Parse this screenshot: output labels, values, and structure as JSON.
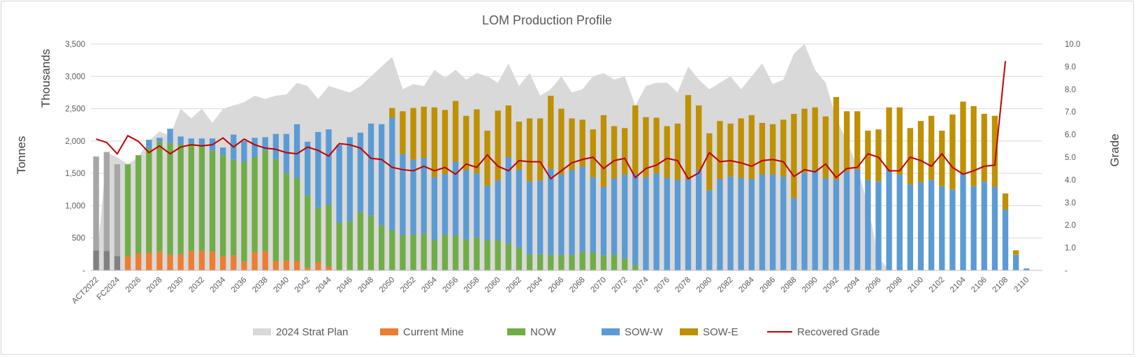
{
  "chart_data": {
    "type": "bar",
    "title": "LOM Production Profile",
    "y_title_outer": "Tonnes",
    "y_title_inner": "Thousands",
    "y2_title": "Grade",
    "ylim": [
      0,
      3500
    ],
    "y_ticks": [
      0,
      500,
      1000,
      1500,
      2000,
      2500,
      3000,
      3500
    ],
    "y_tick_labels": [
      "-",
      "500",
      "1,000",
      "1,500",
      "2,000",
      "2,500",
      "3,000",
      "3,500"
    ],
    "y2lim": [
      0,
      10
    ],
    "y2_ticks": [
      0,
      1,
      2,
      3,
      4,
      5,
      6,
      7,
      8,
      9,
      10
    ],
    "y2_tick_labels": [
      "-",
      "1.0",
      "2.0",
      "3.0",
      "4.0",
      "5.0",
      "6.0",
      "7.0",
      "8.0",
      "9.0",
      "10.0"
    ],
    "categories": [
      "ACT2022",
      "ACT2023",
      "FC2024",
      "2025",
      "2026",
      "2027",
      "2028",
      "2029",
      "2030",
      "2031",
      "2032",
      "2033",
      "2034",
      "2035",
      "2036",
      "2037",
      "2038",
      "2039",
      "2040",
      "2041",
      "2042",
      "2043",
      "2044",
      "2045",
      "2046",
      "2047",
      "2048",
      "2049",
      "2050",
      "2051",
      "2052",
      "2053",
      "2054",
      "2055",
      "2056",
      "2057",
      "2058",
      "2059",
      "2060",
      "2061",
      "2062",
      "2063",
      "2064",
      "2065",
      "2066",
      "2067",
      "2068",
      "2069",
      "2070",
      "2071",
      "2072",
      "2073",
      "2074",
      "2075",
      "2076",
      "2077",
      "2078",
      "2079",
      "2080",
      "2081",
      "2082",
      "2083",
      "2084",
      "2085",
      "2086",
      "2087",
      "2088",
      "2089",
      "2090",
      "2091",
      "2092",
      "2093",
      "2094",
      "2095",
      "2096",
      "2097",
      "2098",
      "2099",
      "2100",
      "2101",
      "2102",
      "2103",
      "2104",
      "2105",
      "2106",
      "2107",
      "2108",
      "2109",
      "2110",
      "2111"
    ],
    "x_tick_labels": [
      "ACT2022",
      "FC2024",
      "2026",
      "2028",
      "2030",
      "2032",
      "2034",
      "2036",
      "2038",
      "2040",
      "2042",
      "2044",
      "2046",
      "2048",
      "2050",
      "2052",
      "2054",
      "2056",
      "2058",
      "2060",
      "2062",
      "2064",
      "2066",
      "2068",
      "2070",
      "2072",
      "2074",
      "2076",
      "2078",
      "2080",
      "2082",
      "2084",
      "2086",
      "2088",
      "2090",
      "2092",
      "2094",
      "2096",
      "2098",
      "2100",
      "2102",
      "2104",
      "2106",
      "2108",
      "2110"
    ],
    "actual_series": {
      "total": [
        1760,
        1830,
        1640
      ],
      "dark": [
        310,
        300,
        220
      ]
    },
    "area_series": {
      "name": "2024 Strat Plan",
      "color": "#d9d9d9",
      "values": [
        0,
        1820,
        1750,
        1640,
        1750,
        2000,
        2150,
        2080,
        2500,
        2350,
        2500,
        2280,
        2500,
        2550,
        2600,
        2700,
        2650,
        2700,
        2720,
        2900,
        2850,
        2650,
        2850,
        2800,
        2750,
        2850,
        3000,
        3150,
        3300,
        2800,
        2880,
        2850,
        3100,
        2980,
        3100,
        2950,
        3050,
        3000,
        2900,
        3200,
        2850,
        3050,
        2700,
        2800,
        3000,
        2750,
        2800,
        3000,
        3050,
        2950,
        3000,
        2550,
        2850,
        2900,
        2900,
        2750,
        3150,
        2950,
        2800,
        2900,
        3000,
        2800,
        3000,
        3200,
        2880,
        2950,
        3350,
        3500,
        3100,
        2900,
        2350,
        2000,
        1600,
        1000,
        200,
        0,
        0,
        0,
        0,
        0,
        0,
        0,
        0,
        0,
        0,
        0,
        0,
        0,
        0,
        0
      ]
    },
    "series": [
      {
        "name": "Current Mine",
        "color": "#ed7d31",
        "values": [
          0,
          0,
          0,
          220,
          260,
          270,
          290,
          240,
          250,
          300,
          300,
          290,
          220,
          230,
          140,
          280,
          300,
          140,
          150,
          140,
          40,
          130,
          60,
          0,
          0,
          0,
          0,
          0,
          0,
          0,
          0,
          0,
          0,
          0,
          0,
          0,
          0,
          0,
          0,
          0,
          0,
          0,
          0,
          0,
          0,
          0,
          0,
          0,
          0,
          0,
          0,
          0,
          0,
          0,
          0,
          0,
          0,
          0,
          0,
          0,
          0,
          0,
          0,
          0,
          0,
          0,
          0,
          0,
          0,
          0,
          0,
          0,
          0,
          0,
          0,
          0,
          0,
          0,
          0,
          0,
          0,
          0,
          0,
          0,
          0,
          0,
          0,
          0,
          0,
          0
        ]
      },
      {
        "name": "NOW",
        "color": "#70ad47",
        "values": [
          0,
          0,
          0,
          1420,
          1520,
          1620,
          1700,
          1730,
          1700,
          1660,
          1630,
          1560,
          1560,
          1480,
          1540,
          1470,
          1550,
          1580,
          1350,
          1290,
          1120,
          840,
          950,
          740,
          760,
          900,
          850,
          700,
          620,
          540,
          550,
          570,
          470,
          550,
          540,
          480,
          510,
          470,
          470,
          420,
          350,
          250,
          250,
          240,
          240,
          240,
          290,
          280,
          230,
          240,
          180,
          80,
          0,
          0,
          0,
          0,
          0,
          0,
          0,
          0,
          0,
          0,
          0,
          0,
          0,
          0,
          0,
          0,
          0,
          0,
          0,
          0,
          0,
          0,
          0,
          0,
          0,
          0,
          0,
          0,
          0,
          0,
          0,
          0,
          0,
          0,
          0,
          0,
          0,
          0
        ]
      },
      {
        "name": "SOW-W",
        "color": "#5b9bd5",
        "values": [
          0,
          0,
          0,
          0,
          0,
          130,
          60,
          220,
          120,
          80,
          110,
          190,
          120,
          390,
          320,
          300,
          210,
          390,
          610,
          830,
          830,
          1170,
          1170,
          1200,
          1300,
          1230,
          1420,
          1560,
          1740,
          1260,
          1160,
          1170,
          970,
          940,
          1140,
          1070,
          990,
          840,
          920,
          1330,
          1200,
          1130,
          1140,
          1330,
          1240,
          1310,
          1310,
          1160,
          1060,
          1180,
          1300,
          1410,
          1440,
          1500,
          1430,
          1400,
          1410,
          1550,
          1240,
          1410,
          1450,
          1430,
          1410,
          1480,
          1480,
          1450,
          1120,
          1510,
          1550,
          1420,
          1400,
          1530,
          1560,
          1400,
          1380,
          1550,
          1480,
          1330,
          1360,
          1400,
          1300,
          1250,
          1490,
          1300,
          1370,
          1290,
          940,
          240,
          30,
          0
        ]
      },
      {
        "name": "SOW-E",
        "color": "#bf9000",
        "values": [
          0,
          0,
          0,
          0,
          0,
          0,
          0,
          0,
          0,
          0,
          0,
          0,
          0,
          0,
          0,
          0,
          0,
          0,
          0,
          0,
          0,
          0,
          0,
          0,
          0,
          0,
          0,
          0,
          150,
          660,
          800,
          790,
          1080,
          990,
          940,
          840,
          990,
          850,
          1080,
          800,
          750,
          970,
          960,
          1130,
          1020,
          800,
          730,
          740,
          1110,
          810,
          720,
          1060,
          930,
          860,
          800,
          870,
          1300,
          1000,
          880,
          900,
          820,
          920,
          990,
          800,
          780,
          880,
          1300,
          990,
          970,
          960,
          1280,
          930,
          900,
          760,
          800,
          970,
          1040,
          870,
          950,
          990,
          860,
          1160,
          1120,
          1240,
          1050,
          1100,
          250,
          70,
          0,
          0
        ]
      },
      {
        "name": "Recovered Grade",
        "color": "#c00000",
        "type": "line",
        "values": [
          5.8,
          5.65,
          5.15,
          5.95,
          5.7,
          5.2,
          5.5,
          5.15,
          5.45,
          5.55,
          5.5,
          5.55,
          5.85,
          5.45,
          5.8,
          5.55,
          5.4,
          5.35,
          5.2,
          5.15,
          5.45,
          5.3,
          5.05,
          5.6,
          5.55,
          5.4,
          4.95,
          4.9,
          4.55,
          4.45,
          4.4,
          4.6,
          4.4,
          4.55,
          4.25,
          4.7,
          4.55,
          5.1,
          4.6,
          4.4,
          4.85,
          4.8,
          4.8,
          4.05,
          4.4,
          4.75,
          4.9,
          5.0,
          4.5,
          4.85,
          4.95,
          4.1,
          4.5,
          4.65,
          4.95,
          4.85,
          4.05,
          4.3,
          5.2,
          4.8,
          4.85,
          4.75,
          4.6,
          4.85,
          4.9,
          4.8,
          4.15,
          4.45,
          4.35,
          4.7,
          4.1,
          4.5,
          4.55,
          5.15,
          5.0,
          4.4,
          4.4,
          5.0,
          4.85,
          4.6,
          5.15,
          4.55,
          4.25,
          4.4,
          4.6,
          4.65,
          9.25,
          null,
          null,
          null
        ]
      }
    ],
    "legend_position": "bottom",
    "legend": [
      "2024 Strat Plan",
      "Current Mine",
      "NOW",
      "SOW-W",
      "SOW-E",
      "Recovered Grade"
    ]
  }
}
